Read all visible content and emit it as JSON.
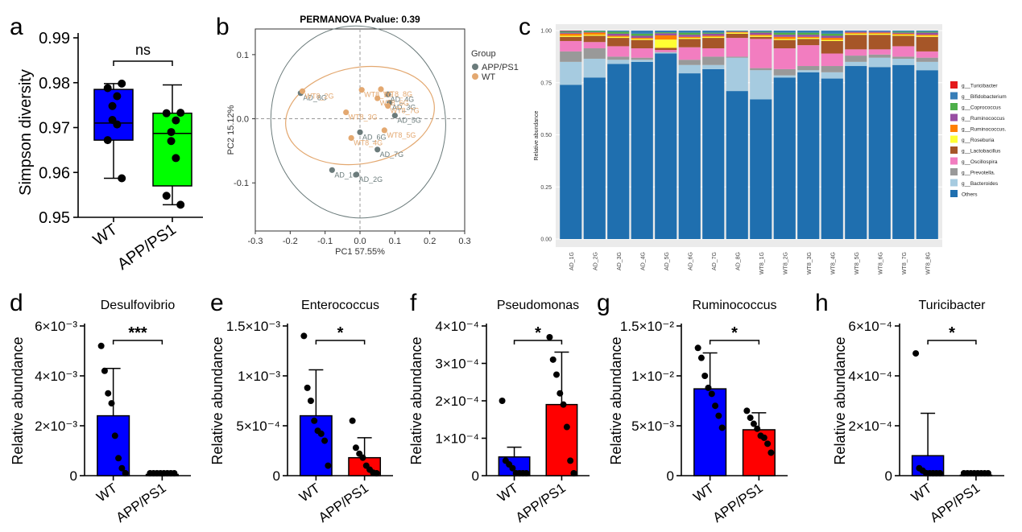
{
  "chart_data": [
    {
      "panel": "a",
      "type": "box",
      "title": "",
      "ylabel": "Simpson diversity",
      "ylim": [
        0.95,
        0.99
      ],
      "yticks": [
        "0.95",
        "0.96",
        "0.97",
        "0.98",
        "0.99"
      ],
      "categories": [
        "WT",
        "APP/PS1"
      ],
      "significance": "ns",
      "colors": [
        "#0000ff",
        "#00ff00"
      ],
      "boxes": [
        {
          "min": 0.9587,
          "q1": 0.9672,
          "median": 0.971,
          "q3": 0.9785,
          "max": 0.9798,
          "points": [
            0.9798,
            0.9788,
            0.977,
            0.9748,
            0.9717,
            0.9707,
            0.9672,
            0.9587
          ]
        },
        {
          "min": 0.9528,
          "q1": 0.957,
          "median": 0.9687,
          "q3": 0.9732,
          "max": 0.9795,
          "points": [
            0.9733,
            0.9732,
            0.9716,
            0.969,
            0.967,
            0.9632,
            0.9548,
            0.9528
          ]
        }
      ]
    },
    {
      "panel": "b",
      "type": "scatter",
      "title": "PERMANOVA Pvalue: 0.39",
      "xlabel": "PC1 57.55%",
      "ylabel": "PC2 15.12%",
      "xlim": [
        -0.3,
        0.3
      ],
      "ylim": [
        -0.175,
        0.14
      ],
      "xticks": [
        "-0.3",
        "-0.2",
        "-0.1",
        "0.0",
        "0.1",
        "0.2",
        "0.3"
      ],
      "yticks": [
        "-0.1",
        "0.0",
        "0.1"
      ],
      "legend_title": "Group",
      "series": [
        {
          "name": "APP/PS1",
          "color": "#6b7b7b",
          "points": [
            {
              "x": -0.17,
              "y": 0.04,
              "label": "AD_8G"
            },
            {
              "x": -0.08,
              "y": -0.08,
              "label": "AD_1G"
            },
            {
              "x": -0.01,
              "y": -0.087,
              "label": "AD_2G"
            },
            {
              "x": 0.0,
              "y": -0.021,
              "label": "AD_6G"
            },
            {
              "x": 0.05,
              "y": -0.048,
              "label": "AD_7G"
            },
            {
              "x": 0.08,
              "y": 0.038,
              "label": "AD_4G"
            },
            {
              "x": 0.1,
              "y": 0.005,
              "label": "AD_5G"
            },
            {
              "x": 0.085,
              "y": 0.025,
              "label": "AD_3G"
            }
          ]
        },
        {
          "name": "WT",
          "color": "#e3a870",
          "points": [
            {
              "x": -0.165,
              "y": 0.043,
              "label": "WT8_2G"
            },
            {
              "x": -0.04,
              "y": 0.01,
              "label": "WT8_3G"
            },
            {
              "x": -0.025,
              "y": -0.03,
              "label": "WT8_4G"
            },
            {
              "x": 0.005,
              "y": 0.045,
              "label": "WT8_1G"
            },
            {
              "x": 0.05,
              "y": 0.032,
              "label": "WT8_6G"
            },
            {
              "x": 0.07,
              "y": -0.018,
              "label": "WT8_5G"
            },
            {
              "x": 0.08,
              "y": 0.02,
              "label": "WT8_7G"
            },
            {
              "x": 0.06,
              "y": 0.046,
              "label": "WT8_8G"
            }
          ]
        }
      ]
    },
    {
      "panel": "c",
      "type": "bar",
      "stacked": true,
      "ylabel": "Relative abundance",
      "ylim": [
        0,
        1
      ],
      "yticks": [
        "0.00",
        "0.25",
        "0.50",
        "0.75",
        "1.00"
      ],
      "categories": [
        "AD_1G",
        "AD_2G",
        "AD_3G",
        "AD_4G",
        "AD_5G",
        "AD_6G",
        "AD_7G",
        "AD_8G",
        "WT8_1G",
        "WT8_2G",
        "WT8_3G",
        "WT8_4G",
        "WT8_5G",
        "WT8_6G",
        "WT8_7G",
        "WT8_8G"
      ],
      "series": [
        {
          "name": "Others",
          "color": "#1f6faf",
          "values": [
            0.74,
            0.775,
            0.84,
            0.85,
            0.89,
            0.795,
            0.815,
            0.71,
            0.67,
            0.775,
            0.8,
            0.77,
            0.83,
            0.825,
            0.835,
            0.81
          ]
        },
        {
          "name": "g__Bacteroides",
          "color": "#a6cbe0",
          "values": [
            0.11,
            0.09,
            0.02,
            0.01,
            0.005,
            0.04,
            0.02,
            0.16,
            0.14,
            0.01,
            0.01,
            0.03,
            0.02,
            0.045,
            0.03,
            0.04
          ]
        },
        {
          "name": "g__Prevotella.",
          "color": "#999999",
          "values": [
            0.05,
            0.05,
            0.015,
            0.01,
            0.002,
            0.025,
            0.04,
            0.005,
            0.01,
            0.03,
            0.02,
            0.03,
            0.03,
            0.015,
            0.01,
            0.02
          ]
        },
        {
          "name": "g__Oscillospira",
          "color": "#f27dc0",
          "values": [
            0.05,
            0.03,
            0.05,
            0.045,
            0.01,
            0.06,
            0.04,
            0.09,
            0.14,
            0.1,
            0.1,
            0.06,
            0.03,
            0.025,
            0.05,
            0.03
          ]
        },
        {
          "name": "g__Lactobacillus",
          "color": "#a65628",
          "values": [
            0.02,
            0.03,
            0.04,
            0.04,
            0.01,
            0.04,
            0.05,
            0.02,
            0.01,
            0.04,
            0.03,
            0.06,
            0.07,
            0.07,
            0.05,
            0.07
          ]
        },
        {
          "name": "g__Roseburia",
          "color": "#ffff33",
          "values": [
            0.005,
            0.005,
            0.005,
            0.005,
            0.04,
            0.005,
            0.005,
            0.005,
            0.005,
            0.005,
            0.005,
            0.005,
            0.005,
            0.005,
            0.005,
            0.005
          ]
        },
        {
          "name": "g__Ruminococcus.",
          "color": "#ff7f00",
          "values": [
            0.01,
            0.01,
            0.005,
            0.005,
            0.02,
            0.005,
            0.005,
            0.003,
            0.005,
            0.01,
            0.005,
            0.01,
            0.005,
            0.005,
            0.005,
            0.005
          ]
        },
        {
          "name": "g__Ruminococcus",
          "color": "#984ea3",
          "values": [
            0.005,
            0.003,
            0.01,
            0.01,
            0.01,
            0.01,
            0.01,
            0.003,
            0.01,
            0.01,
            0.01,
            0.01,
            0.005,
            0.005,
            0.005,
            0.01
          ]
        },
        {
          "name": "g__Coprococcus",
          "color": "#4daf4a",
          "values": [
            0.005,
            0.005,
            0.01,
            0.01,
            0.005,
            0.01,
            0.005,
            0.002,
            0.005,
            0.01,
            0.01,
            0.01,
            0.0,
            0.0,
            0.005,
            0.005
          ]
        },
        {
          "name": "g__Bifidobacterium",
          "color": "#377eb8",
          "values": [
            0.003,
            0.002,
            0.005,
            0.015,
            0.008,
            0.01,
            0.01,
            0.002,
            0.005,
            0.01,
            0.01,
            0.015,
            0.005,
            0.005,
            0.005,
            0.005
          ]
        },
        {
          "name": "g__Turicibacter",
          "color": "#e41a1c",
          "values": [
            0.002,
            0.0,
            0.0,
            0.0,
            0.0,
            0.0,
            0.0,
            0.0,
            0.0,
            0.0,
            0.0,
            0.0,
            0.0,
            0.0,
            0.0,
            0.0
          ]
        }
      ]
    },
    {
      "panel": "d",
      "type": "bar",
      "title": "Desulfovibrio",
      "ylabel": "Relative abundance",
      "ylim": [
        0,
        0.006
      ],
      "yticks": [
        "0",
        "2×10⁻³",
        "4×10⁻³",
        "6×10⁻³"
      ],
      "categories": [
        "WT",
        "APP/PS1"
      ],
      "values": [
        0.0024,
        5e-05
      ],
      "errors": [
        0.0019,
        2e-05
      ],
      "colors": [
        "#0000ff",
        "#ff0000"
      ],
      "significance": "***",
      "points": [
        [
          0.0052,
          0.0042,
          0.0033,
          0.0029,
          0.0016,
          0.0007,
          0.0003,
          0.0001
        ],
        [
          9e-05,
          7e-05,
          6e-05,
          5e-05,
          5e-05,
          4e-05,
          3e-05,
          3e-05
        ]
      ]
    },
    {
      "panel": "e",
      "type": "bar",
      "title": "Enterococcus",
      "ylabel": "Relative abundance",
      "ylim": [
        0,
        0.0015
      ],
      "yticks": [
        "0",
        "5×10⁻⁴",
        "1×10⁻³",
        "1.5×10⁻³"
      ],
      "categories": [
        "WT",
        "APP/PS1"
      ],
      "values": [
        0.0006,
        0.00018
      ],
      "errors": [
        0.00046,
        0.0002
      ],
      "colors": [
        "#0000ff",
        "#ff0000"
      ],
      "significance": "*",
      "points": [
        [
          0.0014,
          0.00088,
          0.00075,
          0.00055,
          0.00045,
          0.00042,
          0.00035,
          0.0001
        ],
        [
          0.00055,
          0.00028,
          0.00022,
          0.00018,
          0.0001,
          6e-05,
          3e-05,
          1e-05
        ]
      ]
    },
    {
      "panel": "f",
      "type": "bar",
      "title": "Pseudomonas",
      "ylabel": "Relative abundance",
      "ylim": [
        0,
        0.0004
      ],
      "yticks": [
        "0",
        "1×10⁻⁴",
        "2×10⁻⁴",
        "3×10⁻⁴",
        "4×10⁻⁴"
      ],
      "categories": [
        "WT",
        "APP/PS1"
      ],
      "values": [
        5e-05,
        0.00019
      ],
      "errors": [
        2.6e-05,
        0.00014
      ],
      "colors": [
        "#0000ff",
        "#ff0000"
      ],
      "significance": "*",
      "points": [
        [
          0.0002,
          4e-05,
          3e-05,
          2e-05,
          5e-06,
          5e-06,
          5e-06,
          5e-06
        ],
        [
          0.00037,
          0.00031,
          0.00027,
          0.00022,
          0.00019,
          0.00013,
          4e-05,
          5e-06
        ]
      ]
    },
    {
      "panel": "g",
      "type": "bar",
      "title": "Ruminococcus",
      "ylabel": "Relative abundance",
      "ylim": [
        0,
        0.015
      ],
      "yticks": [
        "0",
        "5×10⁻³",
        "1×10⁻²",
        "1.5×10⁻²"
      ],
      "categories": [
        "WT",
        "APP/PS1"
      ],
      "values": [
        0.0087,
        0.0046
      ],
      "errors": [
        0.0036,
        0.0017
      ],
      "colors": [
        "#0000ff",
        "#ff0000"
      ],
      "significance": "*",
      "points": [
        [
          0.0128,
          0.0118,
          0.01,
          0.0088,
          0.0082,
          0.007,
          0.006,
          0.0048
        ],
        [
          0.0065,
          0.0058,
          0.0052,
          0.0047,
          0.004,
          0.0038,
          0.0032,
          0.0023
        ]
      ]
    },
    {
      "panel": "h",
      "type": "bar",
      "title": "Turicibacter",
      "ylabel": "Relative abundance",
      "ylim": [
        0,
        0.0006
      ],
      "yticks": [
        "0",
        "2×10⁻⁴",
        "4×10⁻⁴",
        "6×10⁻⁴"
      ],
      "categories": [
        "WT",
        "APP/PS1"
      ],
      "values": [
        8e-05,
        2e-06
      ],
      "errors": [
        0.00017,
        1e-06
      ],
      "colors": [
        "#0000ff",
        "#ff0000"
      ],
      "significance": "*",
      "points": [
        [
          0.00049,
          3e-05,
          2e-05,
          1e-05,
          5e-06,
          3e-06,
          2e-06,
          1e-06
        ],
        [
          3e-06,
          2e-06,
          2e-06,
          2e-06,
          1e-06,
          1e-06,
          1e-06,
          1e-06
        ]
      ]
    }
  ]
}
